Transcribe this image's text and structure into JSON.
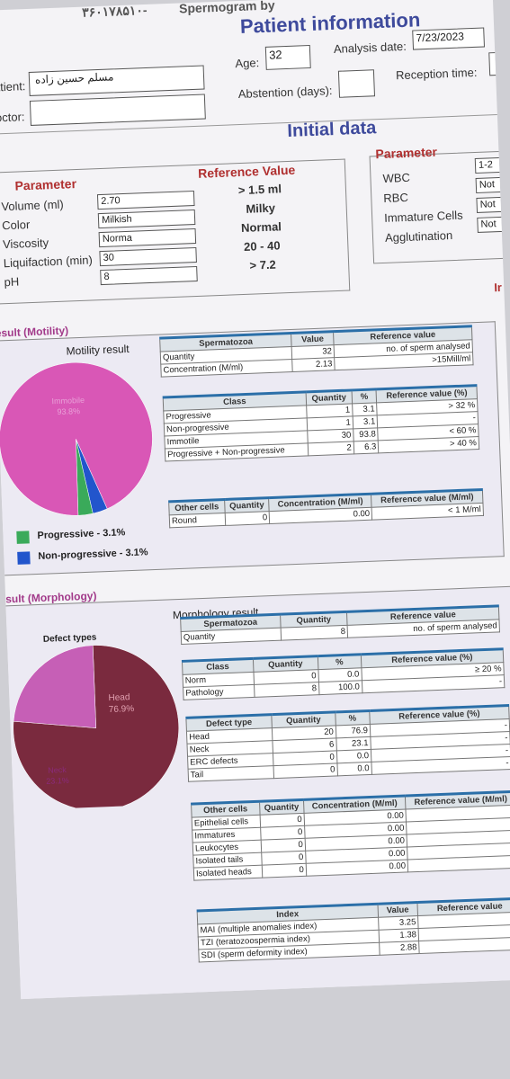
{
  "header": {
    "top_number": "۳۶۰۱۷۸۵۱۰-",
    "program_title": "Spermogram by",
    "section_title": "Patient information",
    "patient_label": "Patient:",
    "patient_name": "مسلم حسین زاده",
    "doctor_label": "Doctor:",
    "age_label": "Age:",
    "age_value": "32",
    "abstention_label": "Abstention (days):",
    "analysis_date_label": "Analysis date:",
    "analysis_date": "7/23/2023",
    "reception_label": "Reception time:"
  },
  "initial_data": {
    "title": "Initial data",
    "parameter_header": "Parameter",
    "reference_header": "Reference Value",
    "rows": [
      {
        "label": "Volume (ml)",
        "value": "2.70",
        "ref": "> 1.5 ml"
      },
      {
        "label": "Color",
        "value": "Milkish",
        "ref": "Milky"
      },
      {
        "label": "Viscosity",
        "value": "Norma",
        "ref": "Normal"
      },
      {
        "label": "Liquifaction (min)",
        "value": "30",
        "ref": "20 - 40"
      },
      {
        "label": "pH",
        "value": "8",
        "ref": "> 7.2"
      }
    ],
    "right_parameter_header": "Parameter",
    "right_rows": [
      {
        "label": "WBC",
        "value": "1-2"
      },
      {
        "label": "RBC",
        "value": "Not"
      },
      {
        "label": "Immature Cells",
        "value": "Not"
      },
      {
        "label": "Agglutination",
        "value": "Not"
      }
    ],
    "right_edge_letter": "Ir"
  },
  "motility": {
    "section_title": "esult (Motility)",
    "chart_title": "Motility result",
    "pie_label_text": "Immobile",
    "pie_label_pct": "93.8%",
    "legend": [
      {
        "label": "Progressive - 3.1%",
        "color": "#3aaa5a"
      },
      {
        "label": "Non-progressive - 3.1%",
        "color": "#2255cc"
      }
    ],
    "colors": {
      "immobile": "#d957b6",
      "progressive": "#3aaa5a",
      "nonprogressive": "#2255cc"
    },
    "t1": {
      "h_spermatozoa": "Spermatozoa",
      "h_value": "Value",
      "h_ref": "Reference value",
      "rows": [
        {
          "label": "Quantity",
          "value": "32",
          "ref": "no. of sperm analysed"
        },
        {
          "label": "Concentration (M/ml)",
          "value": "2.13",
          "ref": ">15Mill/ml"
        }
      ]
    },
    "t2": {
      "h_class": "Class",
      "h_qty": "Quantity",
      "h_pct": "%",
      "h_ref": "Reference value (%)",
      "rows": [
        {
          "label": "Progressive",
          "qty": "1",
          "pct": "3.1",
          "ref": "> 32 %"
        },
        {
          "label": "Non-progressive",
          "qty": "1",
          "pct": "3.1",
          "ref": "-"
        },
        {
          "label": "Immotile",
          "qty": "30",
          "pct": "93.8",
          "ref": "< 60 %"
        },
        {
          "label": "Progressive + Non-progressive",
          "qty": "2",
          "pct": "6.3",
          "ref": "> 40 %"
        }
      ]
    },
    "t3": {
      "h_other": "Other cells",
      "h_qty": "Quantity",
      "h_conc": "Concentration (M/ml)",
      "h_ref": "Reference value (M/ml)",
      "rows": [
        {
          "label": "Round",
          "qty": "0",
          "conc": "0.00",
          "ref": "< 1 M/ml"
        }
      ]
    }
  },
  "morphology": {
    "section_title": "sult (Morphology)",
    "chart_title": "Morphology result",
    "defect_title": "Defect types",
    "pie_head_label": "Head",
    "pie_head_pct": "76.9%",
    "pie_neck_label": "Neck",
    "pie_neck_pct": "23.1%",
    "colors": {
      "head": "#7a2a3e",
      "neck": "#c65fb6"
    },
    "t1": {
      "h_spermatozoa": "Spermatozoa",
      "h_qty": "Quantity",
      "h_ref": "Reference value",
      "rows": [
        {
          "label": "Quantity",
          "qty": "8",
          "ref": "no. of sperm analysed"
        }
      ]
    },
    "t2": {
      "h_class": "Class",
      "h_qty": "Quantity",
      "h_pct": "%",
      "h_ref": "Reference value (%)",
      "rows": [
        {
          "label": "Norm",
          "qty": "0",
          "pct": "0.0",
          "ref": "≥ 20 %"
        },
        {
          "label": "Pathology",
          "qty": "8",
          "pct": "100.0",
          "ref": "-"
        }
      ]
    },
    "t3": {
      "h_defect": "Defect type",
      "h_qty": "Quantity",
      "h_pct": "%",
      "h_ref": "Reference value (%)",
      "rows": [
        {
          "label": "Head",
          "qty": "20",
          "pct": "76.9",
          "ref": "-"
        },
        {
          "label": "Neck",
          "qty": "6",
          "pct": "23.1",
          "ref": "-"
        },
        {
          "label": "ERC defects",
          "qty": "0",
          "pct": "0.0",
          "ref": "-"
        },
        {
          "label": "Tail",
          "qty": "0",
          "pct": "0.0",
          "ref": "-"
        }
      ]
    },
    "t4": {
      "h_other": "Other cells",
      "h_qty": "Quantity",
      "h_conc": "Concentration (M/ml)",
      "h_ref": "Reference value (M/ml)",
      "rows": [
        {
          "label": "Epithelial cells",
          "qty": "0",
          "conc": "0.00",
          "ref": "-"
        },
        {
          "label": "Immatures",
          "qty": "0",
          "conc": "0.00",
          "ref": "-"
        },
        {
          "label": "Leukocytes",
          "qty": "0",
          "conc": "0.00",
          "ref": "-"
        },
        {
          "label": "Isolated tails",
          "qty": "0",
          "conc": "0.00",
          "ref": "-"
        },
        {
          "label": "Isolated heads",
          "qty": "0",
          "conc": "0.00",
          "ref": "-"
        }
      ]
    },
    "t5": {
      "h_index": "Index",
      "h_value": "Value",
      "h_ref": "Reference value",
      "rows": [
        {
          "label": "MAI (multiple anomalies index)",
          "value": "3.25",
          "ref": "-"
        },
        {
          "label": "TZI (teratozoospermia index)",
          "value": "1.38",
          "ref": "-"
        },
        {
          "label": "SDI (sperm deformity index)",
          "value": "2.88",
          "ref": "-"
        }
      ]
    }
  }
}
